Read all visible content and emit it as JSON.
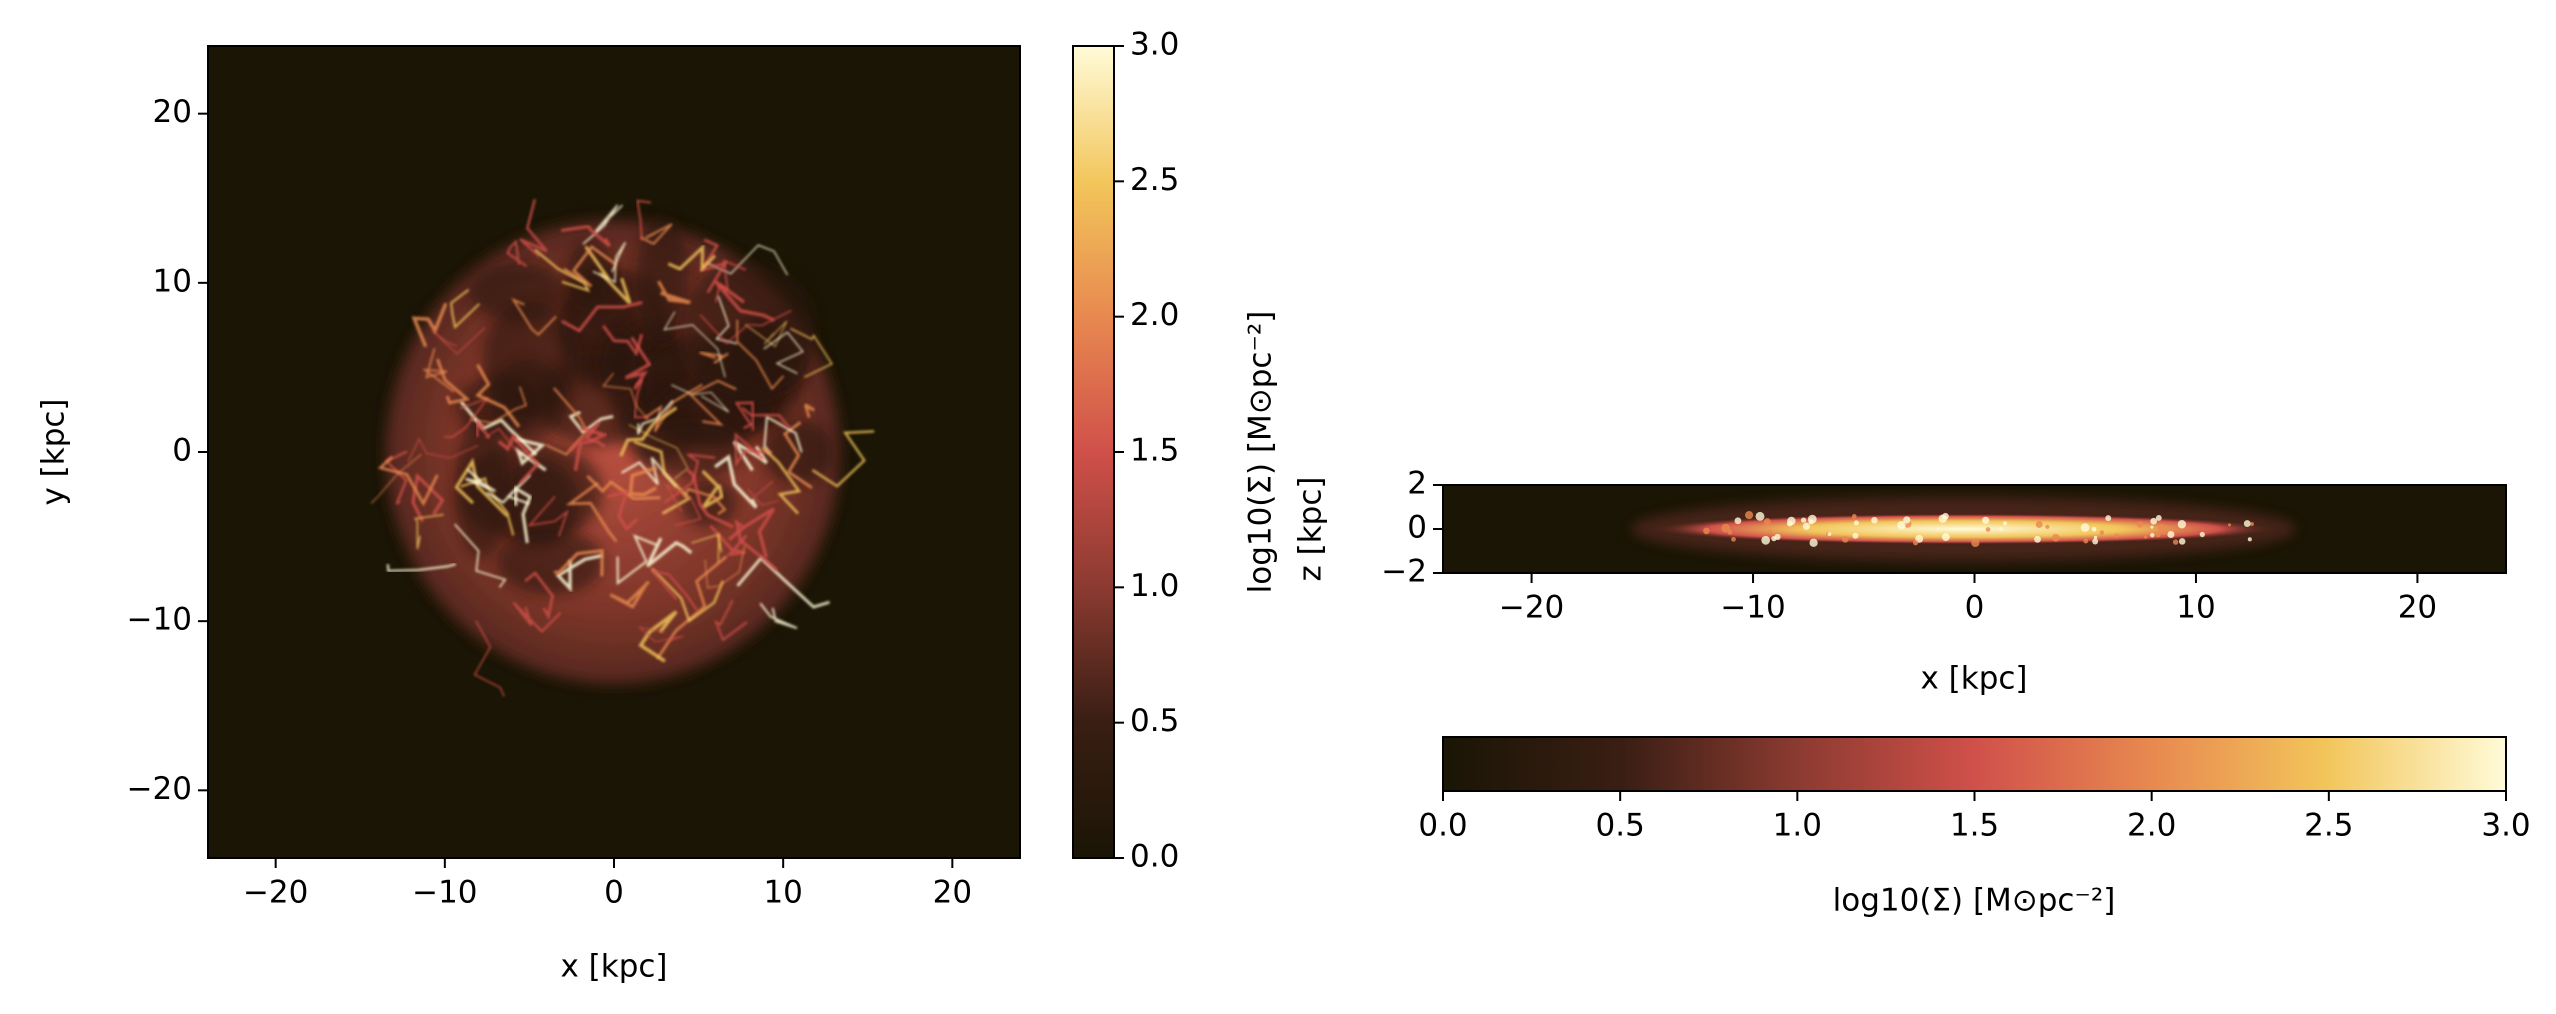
{
  "chart_data": [
    {
      "type": "image",
      "xlabel": "x [kpc]",
      "ylabel": "y [kpc]",
      "xlim": [
        -24,
        24
      ],
      "ylim": [
        -24,
        24
      ],
      "xticks": [
        {
          "value": -20,
          "label": "−20"
        },
        {
          "value": -10,
          "label": "−10"
        },
        0,
        10,
        20
      ],
      "yticks": [
        {
          "value": -20,
          "label": "−20"
        },
        {
          "value": -10,
          "label": "−10"
        },
        0,
        10,
        20
      ],
      "colorbar": {
        "orientation": "vertical",
        "label": "log10(Σ) [M⊙pc⁻²]",
        "lim": [
          0,
          3
        ],
        "ticks": [
          {
            "value": 0,
            "label": "0.0"
          },
          0.5,
          {
            "value": 1,
            "label": "1.0"
          },
          1.5,
          {
            "value": 2,
            "label": "2.0"
          },
          2.5,
          {
            "value": 3,
            "label": "3.0"
          }
        ]
      }
    },
    {
      "type": "image",
      "xlabel": "x [kpc]",
      "ylabel": "z [kpc]",
      "xlim": [
        -24,
        24
      ],
      "ylim": [
        -2,
        2
      ],
      "xticks": [
        {
          "value": -20,
          "label": "−20"
        },
        {
          "value": -10,
          "label": "−10"
        },
        0,
        10,
        20
      ],
      "yticks": [
        {
          "value": -2,
          "label": "−2"
        },
        0,
        2
      ],
      "colorbar": {
        "orientation": "horizontal",
        "label": "log10(Σ) [M⊙pc⁻²]",
        "lim": [
          0,
          3
        ],
        "ticks": [
          {
            "value": 0,
            "label": "0.0"
          },
          0.5,
          {
            "value": 1,
            "label": "1.0"
          },
          1.5,
          {
            "value": 2,
            "label": "2.0"
          },
          2.5,
          {
            "value": 3,
            "label": "3.0"
          }
        ]
      }
    }
  ]
}
